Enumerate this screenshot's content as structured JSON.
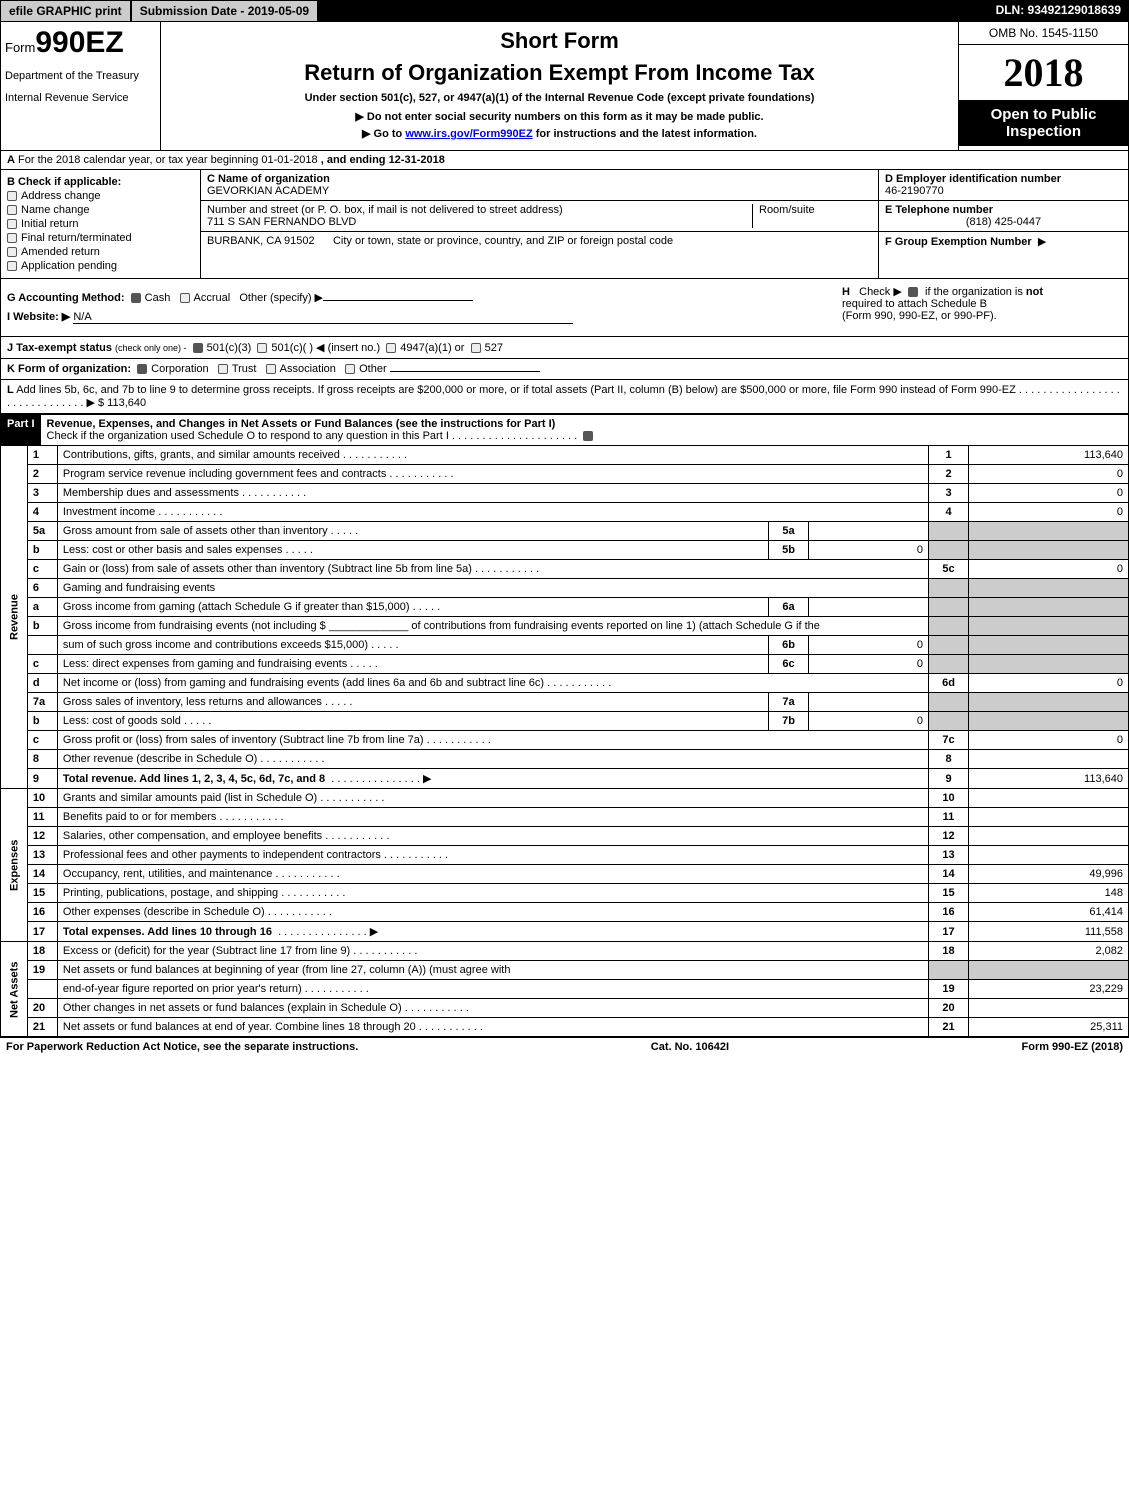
{
  "topbar": {
    "efile_btn": "efile GRAPHIC print",
    "submission_btn": "Submission Date - 2019-05-09",
    "dln": "DLN: 93492129018639"
  },
  "header": {
    "form_prefix": "Form",
    "form_no": "990EZ",
    "dept1": "Department of the Treasury",
    "dept2": "Internal Revenue Service",
    "short_form": "Short Form",
    "title": "Return of Organization Exempt From Income Tax",
    "under_section": "Under section 501(c), 527, or 4947(a)(1) of the Internal Revenue Code (except private foundations)",
    "instr1_prefix": "▶ Do not enter social security numbers on this form as it may be made public.",
    "instr2_prefix": "▶ Go to ",
    "instr2_link": "www.irs.gov/Form990EZ",
    "instr2_suffix": " for instructions and the latest information.",
    "omb": "OMB No. 1545-1150",
    "year": "2018",
    "open_public1": "Open to Public",
    "open_public2": "Inspection"
  },
  "lineA": {
    "label_A": "A",
    "text": "For the 2018 calendar year, or tax year beginning 01-01-2018",
    "ending": ", and ending 12-31-2018"
  },
  "colB": {
    "label": "B",
    "header": "Check if applicable:",
    "items": [
      "Address change",
      "Name change",
      "Initial return",
      "Final return/terminated",
      "Amended return",
      "Application pending"
    ]
  },
  "colC": {
    "c_label": "C Name of organization",
    "c_value": "GEVORKIAN ACADEMY",
    "addr_label": "Number and street (or P. O. box, if mail is not delivered to street address)",
    "addr_value": "711 S SAN FERNANDO BLVD",
    "room_label": "Room/suite",
    "city_value": "BURBANK, CA  91502",
    "city_label": "City or town, state or province, country, and ZIP or foreign postal code"
  },
  "colDEF": {
    "d_label": "D Employer identification number",
    "d_value": "46-2190770",
    "e_label": "E Telephone number",
    "e_value": "(818) 425-0447",
    "f_label": "F Group Exemption Number",
    "f_arrow": "▶"
  },
  "GHI": {
    "g_label": "G Accounting Method:",
    "g_cash": "Cash",
    "g_accrual": "Accrual",
    "g_other": "Other (specify) ▶",
    "h_label": "H",
    "h_check": "Check ▶",
    "h_text1": "if the organization is ",
    "h_not": "not",
    "h_text2": " required to attach Schedule B",
    "h_text3": "(Form 990, 990-EZ, or 990-PF).",
    "i_label": "I Website: ▶",
    "i_value": "N/A"
  },
  "lineJ": {
    "label": "J Tax-exempt status",
    "sub": "(check only one) -",
    "opt1": "501(c)(3)",
    "opt2": "501(c)(  )",
    "opt2_arrow": "◀ (insert no.)",
    "opt3": "4947(a)(1) or",
    "opt4": "527"
  },
  "lineK": {
    "label": "K Form of organization:",
    "opt1": "Corporation",
    "opt2": "Trust",
    "opt3": "Association",
    "opt4": "Other"
  },
  "lineL": {
    "label": "L",
    "text": "Add lines 5b, 6c, and 7b to line 9 to determine gross receipts. If gross receipts are $200,000 or more, or if total assets (Part II, column (B) below) are $500,000 or more, file Form 990 instead of Form 990-EZ",
    "amount": "▶ $ 113,640"
  },
  "part1": {
    "label": "Part I",
    "title": "Revenue, Expenses, and Changes in Net Assets or Fund Balances (see the instructions for Part I)",
    "check_text": "Check if the organization used Schedule O to respond to any question in this Part I"
  },
  "sections": {
    "revenue": "Revenue",
    "expenses": "Expenses",
    "netassets": "Net Assets"
  },
  "rows": [
    {
      "n": "1",
      "desc": "Contributions, gifts, grants, and similar amounts received",
      "ref": "1",
      "amt": "113,640"
    },
    {
      "n": "2",
      "desc": "Program service revenue including government fees and contracts",
      "ref": "2",
      "amt": "0"
    },
    {
      "n": "3",
      "desc": "Membership dues and assessments",
      "ref": "3",
      "amt": "0"
    },
    {
      "n": "4",
      "desc": "Investment income",
      "ref": "4",
      "amt": "0"
    },
    {
      "n": "5a",
      "desc": "Gross amount from sale of assets other than inventory",
      "mid_ref": "5a",
      "mid_amt": ""
    },
    {
      "n": "b",
      "desc": "Less: cost or other basis and sales expenses",
      "mid_ref": "5b",
      "mid_amt": "0"
    },
    {
      "n": "c",
      "desc": "Gain or (loss) from sale of assets other than inventory (Subtract line 5b from line 5a)",
      "ref": "5c",
      "amt": "0"
    },
    {
      "n": "6",
      "desc": "Gaming and fundraising events"
    },
    {
      "n": "a",
      "desc": "Gross income from gaming (attach Schedule G if greater than $15,000)",
      "mid_ref": "6a",
      "mid_amt": ""
    },
    {
      "n": "b",
      "desc": "Gross income from fundraising events (not including $ _____________ of contributions from fundraising events reported on line 1) (attach Schedule G if the"
    },
    {
      "n": "",
      "desc": "sum of such gross income and contributions exceeds $15,000)",
      "mid_ref": "6b",
      "mid_amt": "0"
    },
    {
      "n": "c",
      "desc": "Less: direct expenses from gaming and fundraising events",
      "mid_ref": "6c",
      "mid_amt": "0"
    },
    {
      "n": "d",
      "desc": "Net income or (loss) from gaming and fundraising events (add lines 6a and 6b and subtract line 6c)",
      "ref": "6d",
      "amt": "0"
    },
    {
      "n": "7a",
      "desc": "Gross sales of inventory, less returns and allowances",
      "mid_ref": "7a",
      "mid_amt": ""
    },
    {
      "n": "b",
      "desc": "Less: cost of goods sold",
      "mid_ref": "7b",
      "mid_amt": "0"
    },
    {
      "n": "c",
      "desc": "Gross profit or (loss) from sales of inventory (Subtract line 7b from line 7a)",
      "ref": "7c",
      "amt": "0"
    },
    {
      "n": "8",
      "desc": "Other revenue (describe in Schedule O)",
      "ref": "8",
      "amt": ""
    },
    {
      "n": "9",
      "desc": "Total revenue. Add lines 1, 2, 3, 4, 5c, 6d, 7c, and 8",
      "ref": "9",
      "amt": "113,640",
      "bold": true,
      "arrow": true
    },
    {
      "n": "10",
      "desc": "Grants and similar amounts paid (list in Schedule O)",
      "ref": "10",
      "amt": ""
    },
    {
      "n": "11",
      "desc": "Benefits paid to or for members",
      "ref": "11",
      "amt": ""
    },
    {
      "n": "12",
      "desc": "Salaries, other compensation, and employee benefits",
      "ref": "12",
      "amt": ""
    },
    {
      "n": "13",
      "desc": "Professional fees and other payments to independent contractors",
      "ref": "13",
      "amt": ""
    },
    {
      "n": "14",
      "desc": "Occupancy, rent, utilities, and maintenance",
      "ref": "14",
      "amt": "49,996"
    },
    {
      "n": "15",
      "desc": "Printing, publications, postage, and shipping",
      "ref": "15",
      "amt": "148"
    },
    {
      "n": "16",
      "desc": "Other expenses (describe in Schedule O)",
      "ref": "16",
      "amt": "61,414"
    },
    {
      "n": "17",
      "desc": "Total expenses. Add lines 10 through 16",
      "ref": "17",
      "amt": "111,558",
      "bold": true,
      "arrow": true
    },
    {
      "n": "18",
      "desc": "Excess or (deficit) for the year (Subtract line 17 from line 9)",
      "ref": "18",
      "amt": "2,082"
    },
    {
      "n": "19",
      "desc": "Net assets or fund balances at beginning of year (from line 27, column (A)) (must agree with"
    },
    {
      "n": "",
      "desc": "end-of-year figure reported on prior year's return)",
      "ref": "19",
      "amt": "23,229"
    },
    {
      "n": "20",
      "desc": "Other changes in net assets or fund balances (explain in Schedule O)",
      "ref": "20",
      "amt": ""
    },
    {
      "n": "21",
      "desc": "Net assets or fund balances at end of year. Combine lines 18 through 20",
      "ref": "21",
      "amt": "25,311"
    }
  ],
  "footer": {
    "left": "For Paperwork Reduction Act Notice, see the separate instructions.",
    "mid": "Cat. No. 10642I",
    "right": "Form 990-EZ (2018)"
  }
}
